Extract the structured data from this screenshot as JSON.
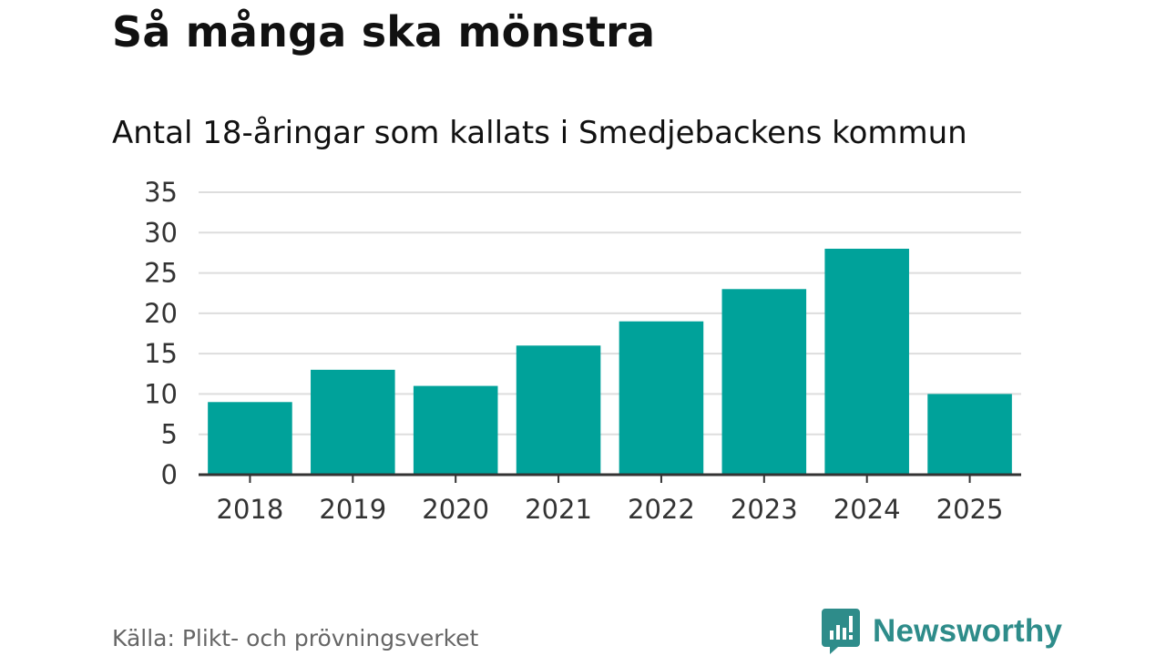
{
  "title": "Så många ska mönstra",
  "subtitle": "Antal 18-åringar som kallats i Smedjebackens kommun",
  "source": "Källa: Plikt- och prövningsverket",
  "brand": {
    "name": "Newsworthy",
    "icon": "newsworthy-logo-icon",
    "color": "#2e8c8a"
  },
  "chart_data": {
    "type": "bar",
    "categories": [
      "2018",
      "2019",
      "2020",
      "2021",
      "2022",
      "2023",
      "2024",
      "2025"
    ],
    "values": [
      9,
      13,
      11,
      16,
      19,
      23,
      28,
      10
    ],
    "ylim": [
      0,
      35
    ],
    "yticks": [
      0,
      5,
      10,
      15,
      20,
      25,
      30,
      35
    ],
    "grid": true,
    "legend": "none",
    "bar_color": "#00a29a",
    "grid_color": "#dddddd",
    "axis_color": "#333333"
  }
}
